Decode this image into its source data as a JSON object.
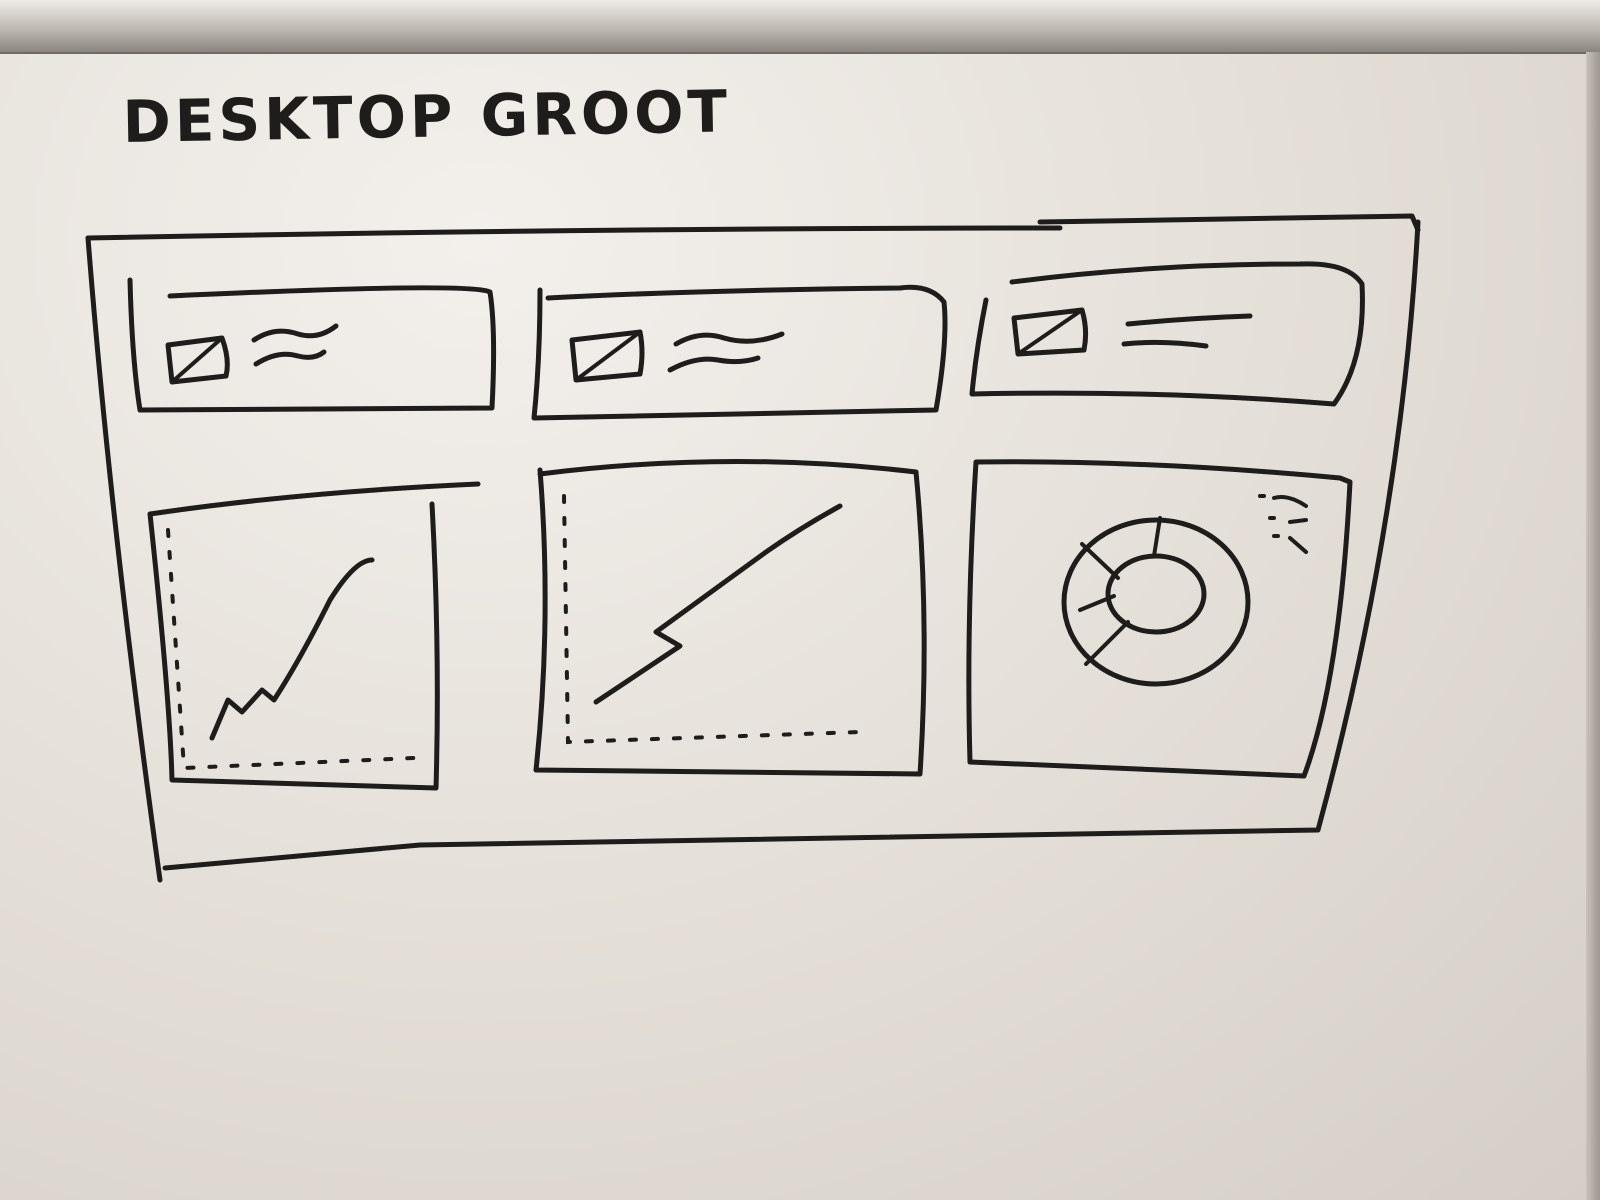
{
  "title": "DESKTOP GROOT",
  "colors": {
    "ink": "#1f1d1b",
    "board": "#e6e1da"
  },
  "stat_cards": [
    {
      "icon": "image-placeholder-icon",
      "text": "wavy-text-placeholder"
    },
    {
      "icon": "image-placeholder-icon",
      "text": "wavy-text-placeholder"
    },
    {
      "icon": "image-placeholder-icon",
      "text": "text-lines-placeholder"
    }
  ],
  "charts": [
    {
      "type": "line",
      "description_icon": "line-chart-sketch"
    },
    {
      "type": "line",
      "description_icon": "line-chart-sketch"
    },
    {
      "type": "pie",
      "description_icon": "donut-chart-sketch"
    }
  ]
}
